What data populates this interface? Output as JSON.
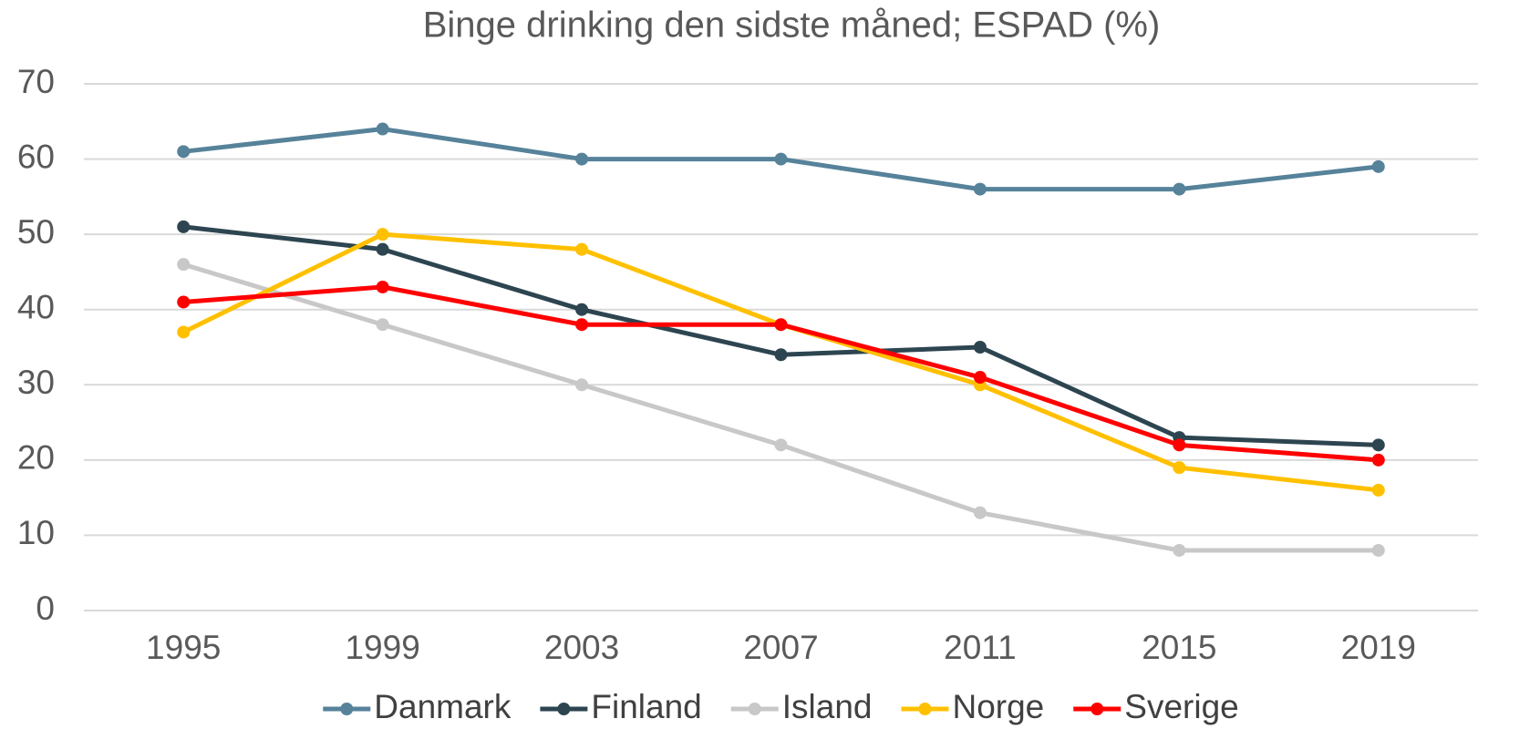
{
  "chart_data": {
    "type": "line",
    "title": "Binge drinking den sidste måned; ESPAD (%)",
    "categories": [
      "1995",
      "1999",
      "2003",
      "2007",
      "2011",
      "2015",
      "2019"
    ],
    "series": [
      {
        "name": "Danmark",
        "color": "#56829a",
        "values": [
          61,
          64,
          60,
          60,
          56,
          56,
          59
        ]
      },
      {
        "name": "Finland",
        "color": "#2d4550",
        "values": [
          51,
          48,
          40,
          34,
          35,
          23,
          22
        ]
      },
      {
        "name": "Island",
        "color": "#c8c8c8",
        "values": [
          46,
          38,
          30,
          22,
          13,
          8,
          8
        ]
      },
      {
        "name": "Norge",
        "color": "#ffc000",
        "values": [
          37,
          50,
          48,
          38,
          30,
          19,
          16
        ]
      },
      {
        "name": "Sverige",
        "color": "#ff0000",
        "values": [
          41,
          43,
          38,
          38,
          31,
          22,
          20
        ]
      }
    ],
    "ylim": [
      0,
      70
    ],
    "yticks": [
      0,
      10,
      20,
      30,
      40,
      50,
      60,
      70
    ],
    "grid": true,
    "legend": "bottom"
  }
}
